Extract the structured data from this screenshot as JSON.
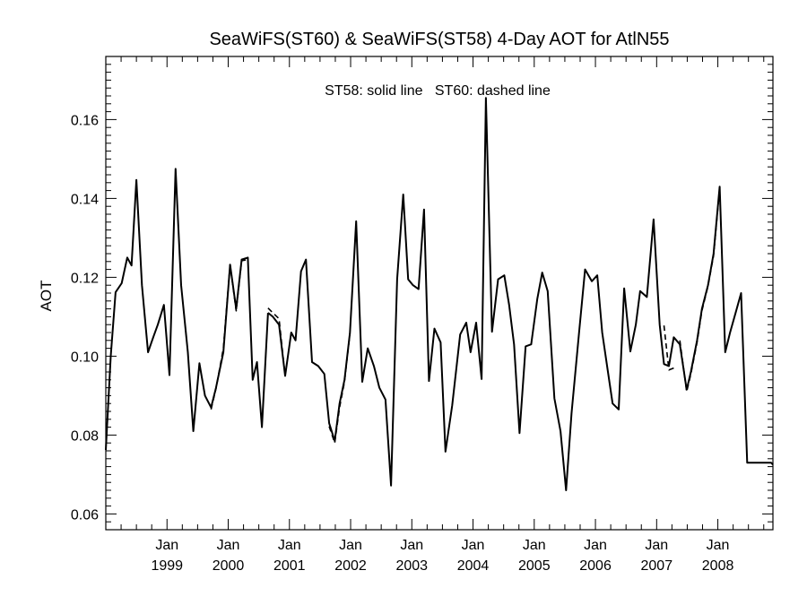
{
  "chart_data": {
    "type": "line",
    "title": "SeaWiFS(ST60) & SeaWiFS(ST58) 4-Day AOT for AtlN55",
    "ylabel": "AOT",
    "xlabel": "",
    "annotation": "ST58: solid line   ST60: dashed line",
    "xlim": [
      1998.0,
      2008.9
    ],
    "ylim": [
      0.056,
      0.176
    ],
    "y_ticks": [
      0.06,
      0.08,
      0.1,
      0.12,
      0.14,
      0.16
    ],
    "y_tick_labels": [
      "0.06",
      "0.08",
      "0.10",
      "0.12",
      "0.14",
      "0.16"
    ],
    "x_ticks": [
      {
        "x": 1999.0,
        "month": "Jan",
        "year": "1999"
      },
      {
        "x": 2000.0,
        "month": "Jan",
        "year": "2000"
      },
      {
        "x": 2001.0,
        "month": "Jan",
        "year": "2001"
      },
      {
        "x": 2002.0,
        "month": "Jan",
        "year": "2002"
      },
      {
        "x": 2003.0,
        "month": "Jan",
        "year": "2003"
      },
      {
        "x": 2004.0,
        "month": "Jan",
        "year": "2004"
      },
      {
        "x": 2005.0,
        "month": "Jan",
        "year": "2005"
      },
      {
        "x": 2006.0,
        "month": "Jan",
        "year": "2006"
      },
      {
        "x": 2007.0,
        "month": "Jan",
        "year": "2007"
      },
      {
        "x": 2008.0,
        "month": "Jan",
        "year": "2008"
      }
    ],
    "series": [
      {
        "name": "ST58",
        "style": "solid",
        "segments": [
          {
            "x": [
              1998.0,
              1998.08,
              1998.16,
              1998.26,
              1998.35,
              1998.42,
              1998.5,
              1998.59,
              1998.69,
              1998.78,
              1998.85,
              1998.95,
              1999.04,
              1999.14,
              1999.23,
              1999.34,
              1999.43,
              1999.53,
              1999.62,
              1999.72,
              1999.8,
              1999.92,
              2000.03,
              2000.13,
              2000.22,
              2000.32,
              2000.4,
              2000.47,
              2000.55,
              2000.65
            ],
            "y": [
              0.0762,
              0.1,
              0.1162,
              0.1185,
              0.125,
              0.123,
              0.1447,
              0.118,
              0.101,
              0.105,
              0.108,
              0.113,
              0.0952,
              0.1475,
              0.118,
              0.101,
              0.081,
              0.0982,
              0.09,
              0.087,
              0.092,
              0.101,
              0.1232,
              0.112,
              0.1245,
              0.125,
              0.094,
              0.0985,
              0.082,
              0.111
            ]
          },
          {
            "x": [
              2000.65,
              2000.73,
              2000.83,
              2000.93,
              2001.03,
              2001.1,
              2001.19,
              2001.27,
              2001.37,
              2001.47,
              2001.57,
              2001.65,
              2001.74,
              2001.82,
              2001.9,
              2001.99,
              2002.09,
              2002.19,
              2002.28,
              2002.38,
              2002.47,
              2002.57,
              2002.66,
              2002.76,
              2002.86,
              2002.94,
              2003.02,
              2003.11,
              2003.2,
              2003.28,
              2003.37,
              2003.47,
              2003.55,
              2003.66,
              2003.79,
              2003.89,
              2003.96,
              2004.05,
              2004.14,
              2004.21,
              2004.31,
              2004.41,
              2004.51,
              2004.59,
              2004.67,
              2004.76,
              2004.86,
              2004.95,
              2005.05,
              2005.13,
              2005.22,
              2005.33,
              2005.43,
              2005.52,
              2005.61,
              2005.73,
              2005.83,
              2005.94,
              2006.03,
              2006.11,
              2006.2,
              2006.28,
              2006.38,
              2006.47,
              2006.57,
              2006.66,
              2006.73,
              2006.84,
              2006.95,
              2007.05,
              2007.12,
              2007.2,
              2007.28,
              2007.38,
              2007.49,
              2007.56,
              2007.66,
              2007.74,
              2007.84,
              2007.93,
              2008.03,
              2008.12,
              2008.2,
              2008.3,
              2008.38,
              2008.48,
              2008.57,
              2008.66,
              2008.76,
              2008.87,
              2008.9
            ],
            "y": [
              0.111,
              0.11,
              0.108,
              0.095,
              0.106,
              0.104,
              0.1215,
              0.1245,
              0.0985,
              0.0975,
              0.0955,
              0.083,
              0.0785,
              0.088,
              0.094,
              0.106,
              0.1342,
              0.0935,
              0.102,
              0.0975,
              0.092,
              0.089,
              0.0672,
              0.1195,
              0.141,
              0.1195,
              0.118,
              0.117,
              0.1372,
              0.0937,
              0.107,
              0.1035,
              0.0758,
              0.0875,
              0.1055,
              0.1085,
              0.101,
              0.1085,
              0.0942,
              0.1655,
              0.1062,
              0.1195,
              0.1205,
              0.113,
              0.103,
              0.0805,
              0.1025,
              0.103,
              0.1145,
              0.1212,
              0.1165,
              0.0893,
              0.081,
              0.066,
              0.0855,
              0.1055,
              0.122,
              0.119,
              0.1205,
              0.106,
              0.0965,
              0.088,
              0.0865,
              0.1172,
              0.1012,
              0.108,
              0.1165,
              0.115,
              0.1347,
              0.108,
              0.098,
              0.0975,
              0.1048,
              0.103,
              0.0915,
              0.096,
              0.104,
              0.112,
              0.118,
              0.126,
              0.143,
              0.101,
              0.106,
              0.1115,
              0.116,
              0.073,
              0.073,
              0.073,
              0.073,
              0.073,
              0.0725
            ]
          }
        ]
      },
      {
        "name": "ST60",
        "style": "dashed",
        "segments": [
          {
            "x": [
              1999.72,
              1999.8,
              1999.92,
              2000.03,
              2000.13,
              2000.22,
              2000.32
            ],
            "y": [
              0.0865,
              0.0918,
              0.102,
              0.1232,
              0.1115,
              0.1242,
              0.1245
            ]
          },
          {
            "x": [
              2000.65,
              2000.73,
              2000.83,
              2000.93
            ],
            "y": [
              0.1122,
              0.111,
              0.1095,
              0.095
            ]
          },
          {
            "x": [
              2001.65,
              2001.74,
              2001.82,
              2001.9,
              2001.99
            ],
            "y": [
              0.0822,
              0.078,
              0.087,
              0.0935,
              0.1058
            ]
          },
          {
            "x": [
              2007.38,
              2007.49,
              2007.56,
              2007.66,
              2007.74,
              2007.84,
              2007.93,
              2008.03
            ],
            "y": [
              0.104,
              0.091,
              0.0955,
              0.1035,
              0.1115,
              0.1178,
              0.1255,
              0.1425
            ]
          },
          {
            "x": [
              2007.12,
              2007.2,
              2007.28
            ],
            "y": [
              0.1078,
              0.0965,
              0.097
            ]
          }
        ]
      }
    ]
  }
}
